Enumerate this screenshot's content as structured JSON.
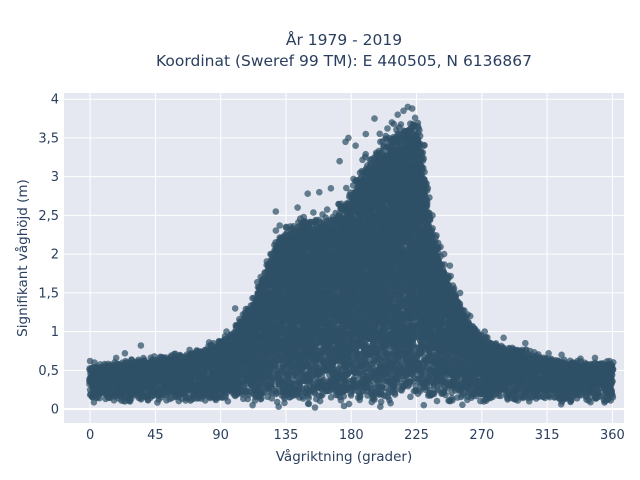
{
  "chart_data": {
    "type": "scatter",
    "title_line1": "År 1979 - 2019",
    "title_line2": "Koordinat (Sweref 99 TM): E 440505, N 6136867",
    "xlabel": "Vågriktning (grader)",
    "ylabel": "Signifikant våghöjd (m)",
    "xlim": [
      -18,
      368
    ],
    "ylim": [
      -0.18,
      4.08
    ],
    "xticks": [
      0,
      45,
      90,
      135,
      180,
      225,
      270,
      315,
      360
    ],
    "xtick_labels": [
      "0",
      "45",
      "90",
      "135",
      "180",
      "225",
      "270",
      "315",
      "360"
    ],
    "yticks": [
      0,
      0.5,
      1,
      1.5,
      2,
      2.5,
      3,
      3.5,
      4
    ],
    "ytick_labels": [
      "0",
      "0,5",
      "1",
      "1,5",
      "2",
      "2,5",
      "3",
      "3,5",
      "4"
    ],
    "grid": true,
    "marker_color": "#2f5167",
    "plot_background": "#e5e8f1",
    "envelope": {
      "description": "approximate upper boundary of the point cloud (direction in degrees, wave height in m)",
      "x": [
        0,
        20,
        40,
        60,
        80,
        95,
        110,
        120,
        130,
        140,
        150,
        160,
        170,
        180,
        190,
        200,
        210,
        220,
        225,
        230,
        235,
        240,
        250,
        260,
        270,
        280,
        300,
        320,
        340,
        360
      ],
      "y": [
        0.55,
        0.6,
        0.65,
        0.7,
        0.8,
        0.95,
        1.35,
        1.8,
        2.3,
        2.45,
        2.5,
        2.45,
        2.6,
        2.9,
        3.2,
        3.45,
        3.65,
        3.75,
        3.8,
        3.3,
        2.5,
        2.1,
        1.6,
        1.2,
        0.95,
        0.85,
        0.75,
        0.65,
        0.6,
        0.6
      ]
    },
    "points": [
      [
        0,
        0.62
      ],
      [
        3,
        0.6
      ],
      [
        10,
        0.58
      ],
      [
        18,
        0.66
      ],
      [
        24,
        0.72
      ],
      [
        30,
        0.52
      ],
      [
        35,
        0.82
      ],
      [
        48,
        0.66
      ],
      [
        55,
        0.62
      ],
      [
        68,
        0.68
      ],
      [
        82,
        0.86
      ],
      [
        94,
        1.0
      ],
      [
        100,
        1.3
      ],
      [
        128,
        2.55
      ],
      [
        143,
        2.6
      ],
      [
        150,
        2.78
      ],
      [
        158,
        2.8
      ],
      [
        166,
        2.85
      ],
      [
        172,
        3.2
      ],
      [
        176,
        3.45
      ],
      [
        178,
        3.5
      ],
      [
        183,
        3.4
      ],
      [
        186,
        3.05
      ],
      [
        190,
        3.55
      ],
      [
        196,
        3.75
      ],
      [
        200,
        3.45
      ],
      [
        208,
        3.7
      ],
      [
        212,
        3.8
      ],
      [
        216,
        3.85
      ],
      [
        219,
        3.9
      ],
      [
        222,
        3.88
      ],
      [
        224,
        3.76
      ],
      [
        227,
        3.6
      ],
      [
        230,
        3.4
      ],
      [
        236,
        2.5
      ],
      [
        244,
        2.0
      ],
      [
        248,
        1.85
      ],
      [
        255,
        1.5
      ],
      [
        262,
        1.2
      ],
      [
        272,
        1.0
      ],
      [
        285,
        0.92
      ],
      [
        300,
        0.85
      ],
      [
        316,
        0.72
      ],
      [
        325,
        0.7
      ],
      [
        338,
        0.65
      ],
      [
        348,
        0.66
      ],
      [
        358,
        0.62
      ],
      [
        5,
        0.15
      ],
      [
        12,
        0.28
      ],
      [
        27,
        0.2
      ],
      [
        42,
        0.35
      ],
      [
        60,
        0.24
      ],
      [
        75,
        0.4
      ],
      [
        95,
        0.1
      ],
      [
        112,
        0.05
      ],
      [
        130,
        0.03
      ],
      [
        155,
        0.02
      ],
      [
        175,
        0.04
      ],
      [
        200,
        0.03
      ],
      [
        230,
        0.05
      ],
      [
        260,
        0.12
      ],
      [
        290,
        0.2
      ],
      [
        320,
        0.15
      ],
      [
        345,
        0.22
      ],
      [
        360,
        0.18
      ]
    ]
  }
}
